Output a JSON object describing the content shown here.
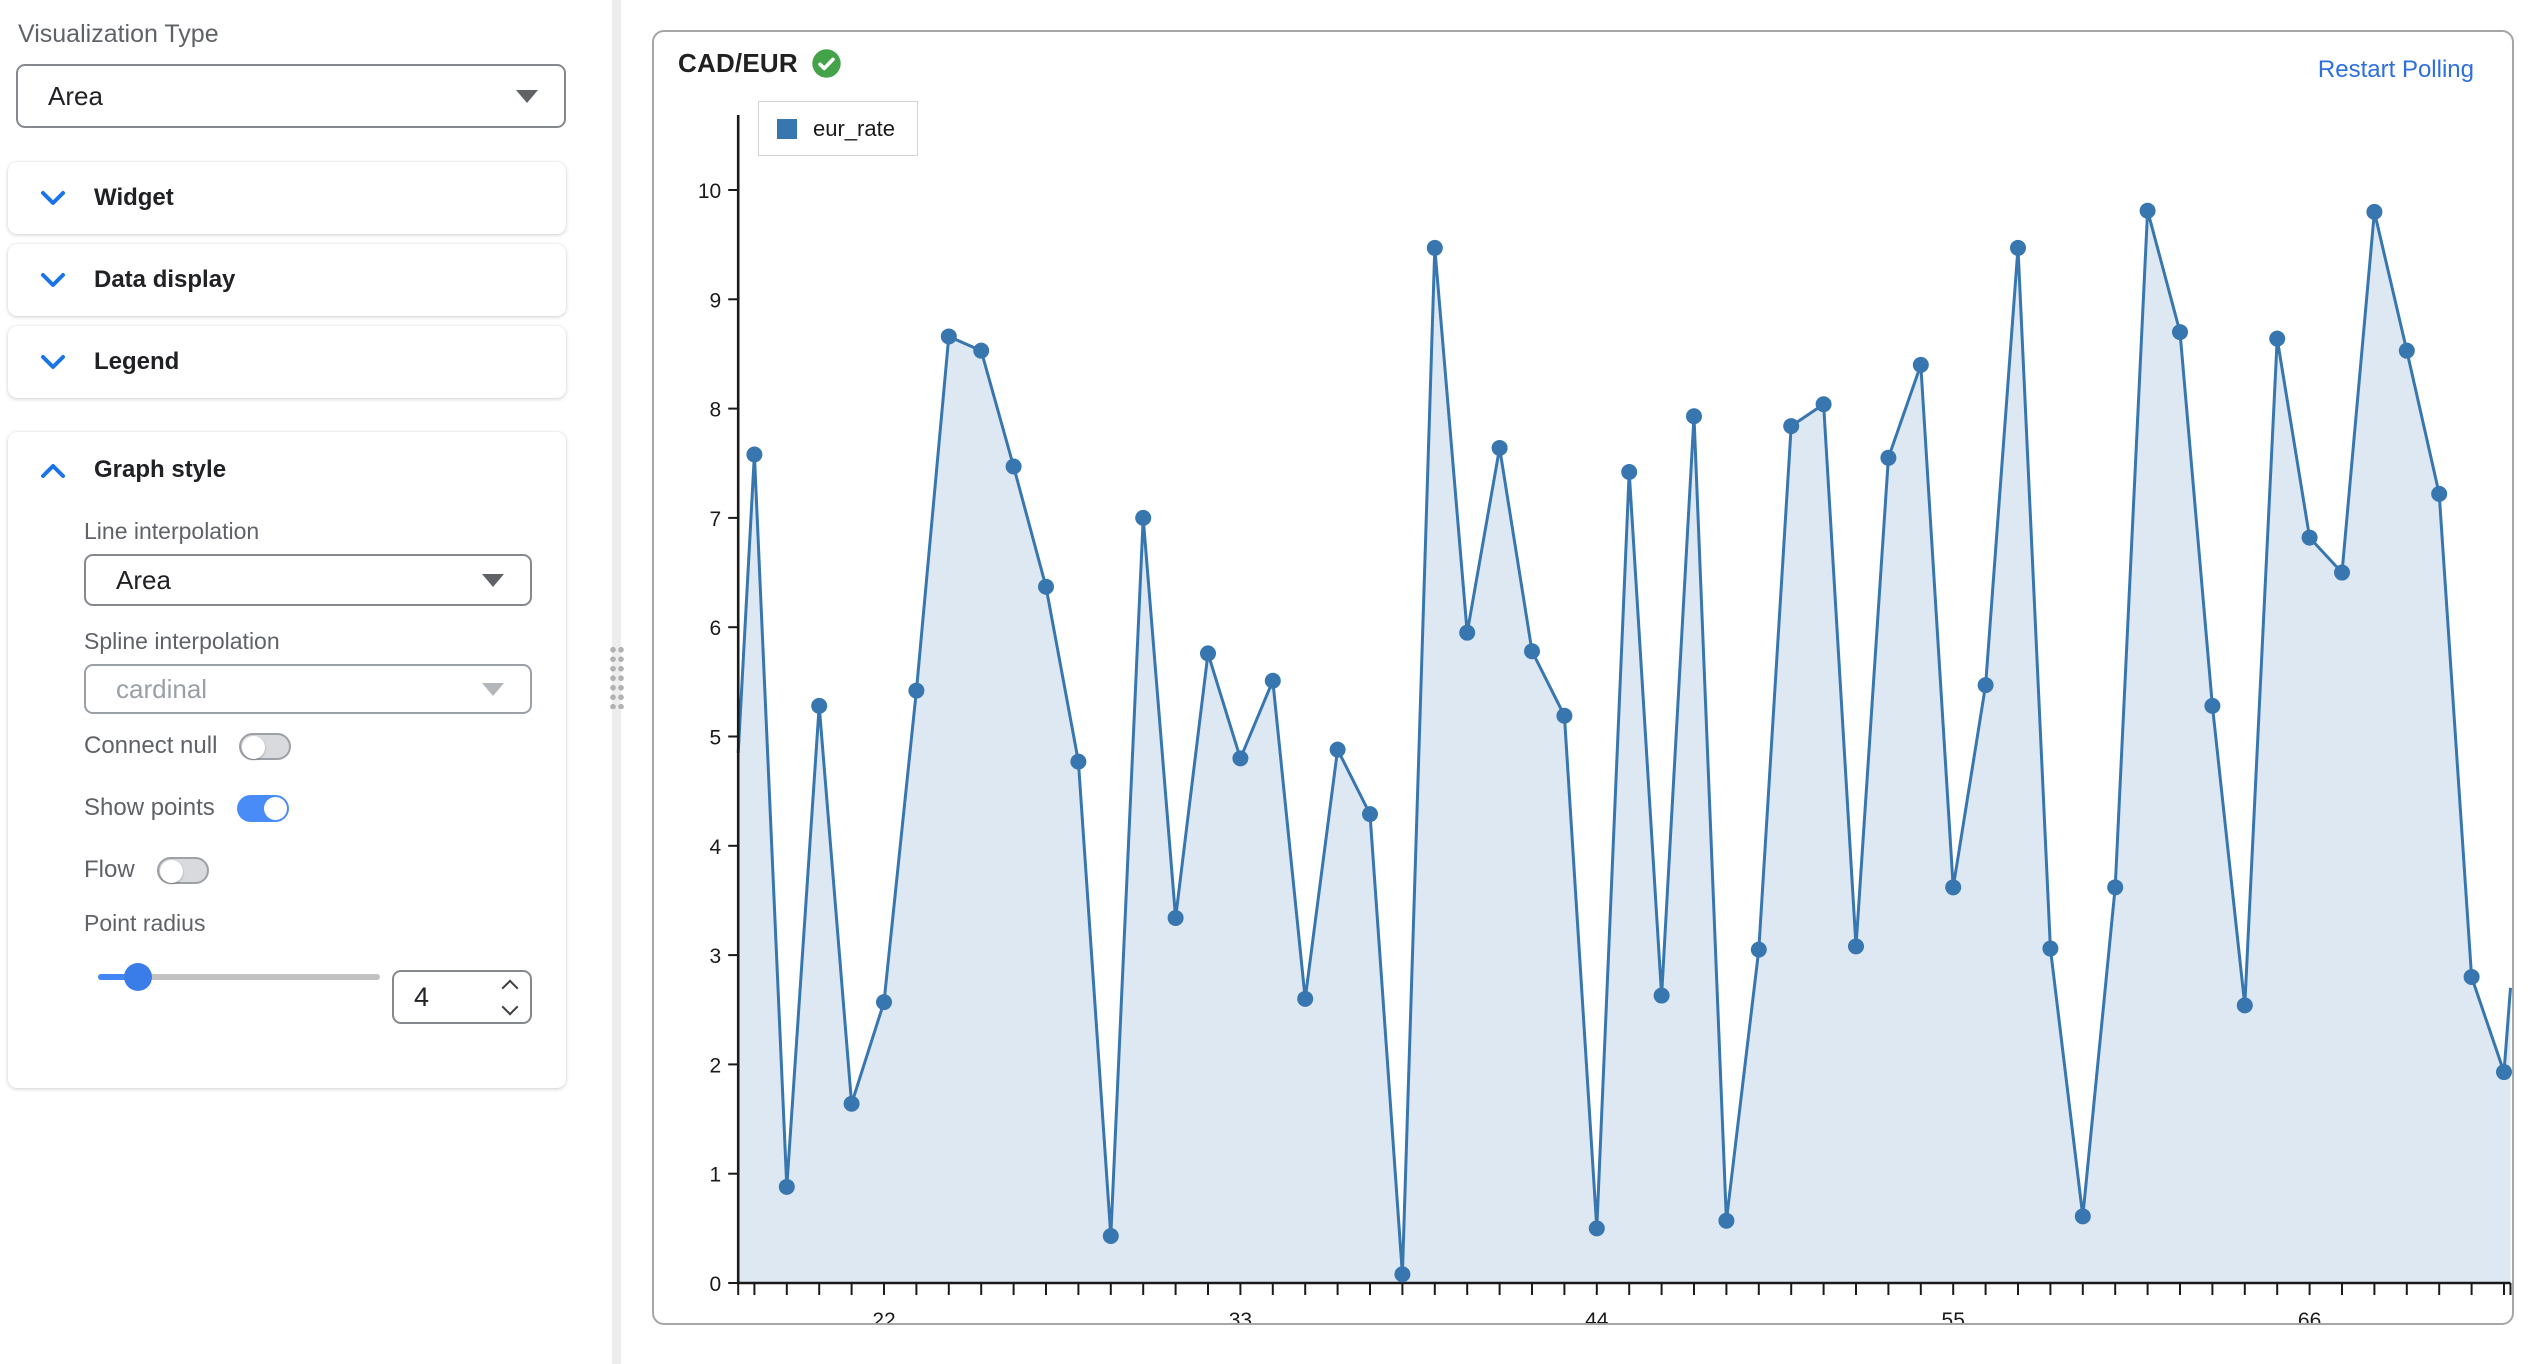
{
  "sidebar": {
    "viz_type": {
      "label": "Visualization Type",
      "value": "Area"
    },
    "sections": [
      {
        "label": "Widget",
        "state": "collapsed"
      },
      {
        "label": "Data display",
        "state": "collapsed"
      },
      {
        "label": "Legend",
        "state": "collapsed"
      }
    ],
    "graph_style": {
      "title": "Graph style",
      "state": "expanded",
      "line_interpolation": {
        "label": "Line interpolation",
        "value": "Area"
      },
      "spline_interpolation": {
        "label": "Spline interpolation",
        "value": "cardinal",
        "disabled": true
      },
      "connect_null": {
        "label": "Connect null",
        "on": false
      },
      "show_points": {
        "label": "Show points",
        "on": true
      },
      "flow": {
        "label": "Flow",
        "on": false
      },
      "point_radius": {
        "label": "Point radius",
        "value": "4"
      }
    },
    "accent_color": "#4a8cf7",
    "chevron_color": "#1a73e8"
  },
  "chart_card": {
    "title": "CAD/EUR",
    "status_icon": "check-circle-icon",
    "status_color": "#44a248",
    "restart_label": "Restart Polling",
    "restart_color": "#2e6fe0"
  },
  "chart_data": {
    "type": "area",
    "title": "CAD/EUR",
    "legend": {
      "entries": [
        "eur_rate"
      ],
      "position": "top-left",
      "swatch_color": "#3876b0"
    },
    "series": [
      {
        "name": "eur_rate",
        "x": [
          18,
          19,
          20,
          21,
          22,
          23,
          24,
          25,
          26,
          27,
          28,
          29,
          30,
          31,
          32,
          33,
          34,
          35,
          36,
          37,
          38,
          39,
          40,
          41,
          42,
          43,
          44,
          45,
          46,
          47,
          48,
          49,
          50,
          51,
          52,
          53,
          54,
          55,
          56,
          57,
          58,
          59,
          60,
          61,
          62,
          63,
          64,
          65,
          66,
          67,
          68,
          69,
          70,
          71,
          72
        ],
        "values": [
          7.58,
          0.88,
          5.28,
          1.64,
          2.57,
          5.42,
          8.66,
          8.53,
          7.47,
          6.37,
          4.77,
          0.43,
          7.0,
          3.34,
          5.76,
          4.8,
          5.51,
          2.6,
          4.88,
          4.29,
          0.08,
          9.47,
          5.95,
          7.64,
          5.78,
          5.19,
          0.5,
          7.42,
          2.63,
          7.93,
          0.57,
          3.05,
          7.84,
          8.04,
          3.08,
          7.55,
          8.4,
          3.62,
          5.47,
          9.47,
          3.06,
          0.61,
          3.62,
          9.81,
          8.7,
          5.28,
          2.54,
          8.64,
          6.82,
          6.5,
          9.8,
          8.53,
          7.22,
          2.8,
          1.93
        ]
      }
    ],
    "edge_start": {
      "x": 17.5,
      "y": 4.85
    },
    "edge_end": {
      "x": 72.2,
      "y": 2.7
    },
    "xlim": [
      17.5,
      72.2
    ],
    "ylim": [
      0,
      10
    ],
    "x_ticks_labeled": [
      "22",
      "33",
      "44",
      "55",
      "66"
    ],
    "y_ticks": [
      "0",
      "1",
      "2",
      "3",
      "4",
      "5",
      "6",
      "7",
      "8",
      "9",
      "10"
    ],
    "grid": false,
    "line_color": "#3876b0",
    "area_fill": "rgba(56,118,176,0.17)",
    "point_color": "#3876b0",
    "point_radius_px": 8,
    "axis_color": "#1a1a1a"
  }
}
